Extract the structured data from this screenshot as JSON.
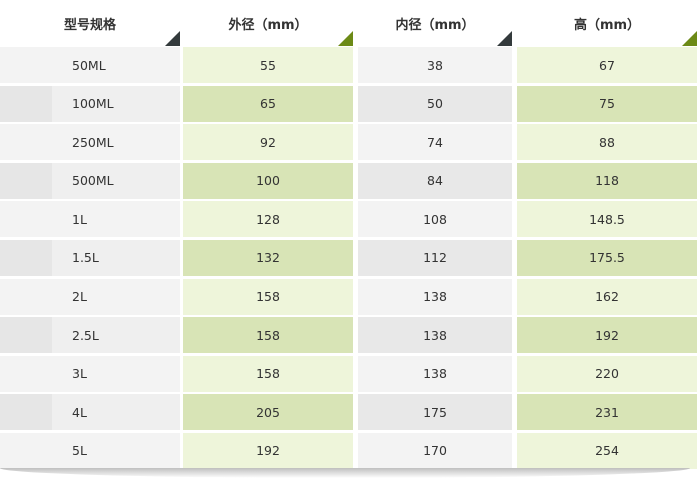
{
  "headers": [
    "型号规格",
    "外径（mm）",
    "内径（mm）",
    "高（mm）"
  ],
  "colors": {
    "header_triangle_grey": "#333a3c",
    "header_triangle_green": "#6c8a16",
    "green_light": "#eef5da",
    "green_dark": "#d8e4b6",
    "grey_light": "#f3f3f3",
    "grey_dark": "#e8e8e8"
  },
  "columns": {
    "model": [
      "50ML",
      "100ML",
      "250ML",
      "500ML",
      "1L",
      "1.5L",
      "2L",
      "2.5L",
      "3L",
      "4L",
      "5L"
    ],
    "outer": [
      "55",
      "65",
      "92",
      "100",
      "128",
      "132",
      "158",
      "158",
      "158",
      "205",
      "192"
    ],
    "inner": [
      "38",
      "50",
      "74",
      "84",
      "108",
      "112",
      "138",
      "138",
      "138",
      "175",
      "170"
    ],
    "height": [
      "67",
      "75",
      "88",
      "118",
      "148.5",
      "175.5",
      "162",
      "192",
      "220",
      "231",
      "254"
    ]
  }
}
